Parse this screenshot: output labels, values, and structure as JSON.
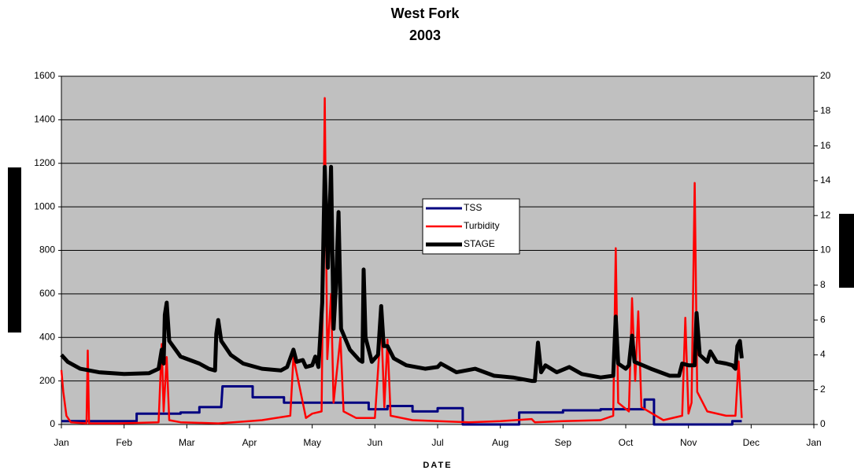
{
  "chart_data": {
    "type": "line",
    "title": [
      "West Fork",
      "2003"
    ],
    "x_label": "DATE",
    "xlim": [
      0,
      12
    ],
    "xticks": [
      {
        "value": 0,
        "label": "Jan"
      },
      {
        "value": 1,
        "label": "Feb"
      },
      {
        "value": 2,
        "label": "Mar"
      },
      {
        "value": 3,
        "label": "Apr"
      },
      {
        "value": 4,
        "label": "May"
      },
      {
        "value": 5,
        "label": "Jun"
      },
      {
        "value": 6,
        "label": "Jul"
      },
      {
        "value": 7,
        "label": "Aug"
      },
      {
        "value": 8,
        "label": "Sep"
      },
      {
        "value": 9,
        "label": "Oct"
      },
      {
        "value": 10,
        "label": "Nov"
      },
      {
        "value": 11,
        "label": "Dec"
      },
      {
        "value": 12,
        "label": "Jan"
      }
    ],
    "ylim": [
      0,
      1600
    ],
    "yticks": [
      0,
      200,
      400,
      600,
      800,
      1000,
      1200,
      1400,
      1600
    ],
    "y2lim": [
      0,
      20
    ],
    "y2ticks": [
      0,
      2,
      4,
      6,
      8,
      10,
      12,
      14,
      16,
      18,
      20
    ],
    "grid": true,
    "legend": "center",
    "series": [
      {
        "name": "TSS",
        "color": "#000080",
        "width": 3,
        "x": [
          0,
          1.2,
          1.2,
          1.9,
          1.9,
          2.2,
          2.2,
          2.55,
          2.57,
          3.05,
          3.05,
          3.55,
          3.55,
          4.9,
          4.9,
          5.2,
          5.2,
          5.6,
          5.6,
          6.0,
          6.0,
          6.4,
          6.4,
          7.3,
          7.3,
          8.0,
          8.0,
          8.6,
          8.6,
          9.3,
          9.3,
          9.45,
          9.45,
          10.7,
          10.7,
          10.85
        ],
        "values": [
          15,
          15,
          50,
          50,
          55,
          55,
          80,
          80,
          175,
          175,
          125,
          125,
          100,
          100,
          70,
          70,
          85,
          85,
          60,
          60,
          75,
          75,
          0,
          0,
          55,
          55,
          65,
          65,
          70,
          70,
          115,
          115,
          0,
          0,
          15,
          15
        ]
      },
      {
        "name": "Turbidity",
        "color": "#ff0000",
        "width": 2.5,
        "x": [
          0,
          0.03,
          0.08,
          0.15,
          0.4,
          0.42,
          0.44,
          0.9,
          1.55,
          1.6,
          1.63,
          1.68,
          1.72,
          1.9,
          2.5,
          3.0,
          3.2,
          3.65,
          3.7,
          3.9,
          4.0,
          4.15,
          4.2,
          4.24,
          4.3,
          4.34,
          4.45,
          4.5,
          4.7,
          5.0,
          5.1,
          5.15,
          5.2,
          5.25,
          5.6,
          6.5,
          7.0,
          7.5,
          7.55,
          8.0,
          8.6,
          8.8,
          8.84,
          8.88,
          9.05,
          9.1,
          9.15,
          9.2,
          9.25,
          9.6,
          9.9,
          9.95,
          10.0,
          10.05,
          10.1,
          10.14,
          10.3,
          10.6,
          10.75,
          10.8,
          10.85
        ],
        "values": [
          250,
          150,
          40,
          10,
          5,
          340,
          5,
          5,
          10,
          370,
          60,
          310,
          20,
          10,
          5,
          15,
          20,
          40,
          310,
          30,
          50,
          60,
          1500,
          300,
          600,
          100,
          400,
          60,
          30,
          30,
          470,
          80,
          390,
          40,
          20,
          10,
          15,
          25,
          10,
          15,
          20,
          40,
          810,
          100,
          60,
          580,
          200,
          520,
          80,
          20,
          40,
          490,
          50,
          100,
          1110,
          150,
          60,
          40,
          40,
          290,
          30
        ]
      },
      {
        "name": "STAGE",
        "color": "#000000",
        "width": 5,
        "axis": "y2",
        "x": [
          0,
          0.1,
          0.3,
          0.6,
          1.0,
          1.4,
          1.55,
          1.6,
          1.63,
          1.65,
          1.68,
          1.72,
          1.9,
          2.2,
          2.35,
          2.45,
          2.47,
          2.5,
          2.55,
          2.7,
          2.9,
          3.2,
          3.5,
          3.6,
          3.65,
          3.7,
          3.75,
          3.85,
          3.9,
          4.0,
          4.05,
          4.1,
          4.16,
          4.2,
          4.25,
          4.3,
          4.34,
          4.38,
          4.42,
          4.46,
          4.6,
          4.75,
          4.8,
          4.82,
          4.85,
          4.95,
          5.05,
          5.1,
          5.14,
          5.2,
          5.3,
          5.5,
          5.8,
          6.0,
          6.05,
          6.3,
          6.6,
          6.9,
          7.2,
          7.5,
          7.55,
          7.6,
          7.65,
          7.72,
          7.9,
          8.1,
          8.3,
          8.6,
          8.8,
          8.84,
          8.88,
          9.0,
          9.05,
          9.1,
          9.14,
          9.4,
          9.7,
          9.85,
          9.9,
          10.0,
          10.1,
          10.13,
          10.18,
          10.3,
          10.35,
          10.45,
          10.6,
          10.7,
          10.75,
          10.78,
          10.82,
          10.85
        ],
        "values": [
          4.0,
          3.6,
          3.2,
          3.0,
          2.9,
          2.95,
          3.2,
          4.3,
          3.5,
          6.3,
          7.0,
          4.8,
          3.9,
          3.5,
          3.2,
          3.1,
          5.2,
          6.0,
          4.8,
          4.0,
          3.5,
          3.2,
          3.1,
          3.3,
          3.8,
          4.3,
          3.6,
          3.7,
          3.3,
          3.4,
          3.9,
          3.3,
          7.0,
          14.8,
          9.0,
          14.8,
          5.5,
          8.0,
          12.2,
          5.5,
          4.3,
          3.7,
          3.6,
          8.9,
          5.0,
          3.6,
          4.0,
          6.8,
          4.5,
          4.5,
          3.8,
          3.4,
          3.2,
          3.3,
          3.5,
          3.0,
          3.2,
          2.8,
          2.7,
          2.5,
          2.5,
          4.7,
          3.0,
          3.4,
          3.0,
          3.3,
          2.9,
          2.7,
          2.8,
          6.2,
          3.5,
          3.2,
          3.4,
          5.1,
          3.6,
          3.2,
          2.8,
          2.8,
          3.5,
          3.4,
          3.4,
          6.4,
          4.0,
          3.6,
          4.2,
          3.6,
          3.5,
          3.4,
          3.2,
          4.5,
          4.8,
          3.8
        ]
      }
    ]
  }
}
